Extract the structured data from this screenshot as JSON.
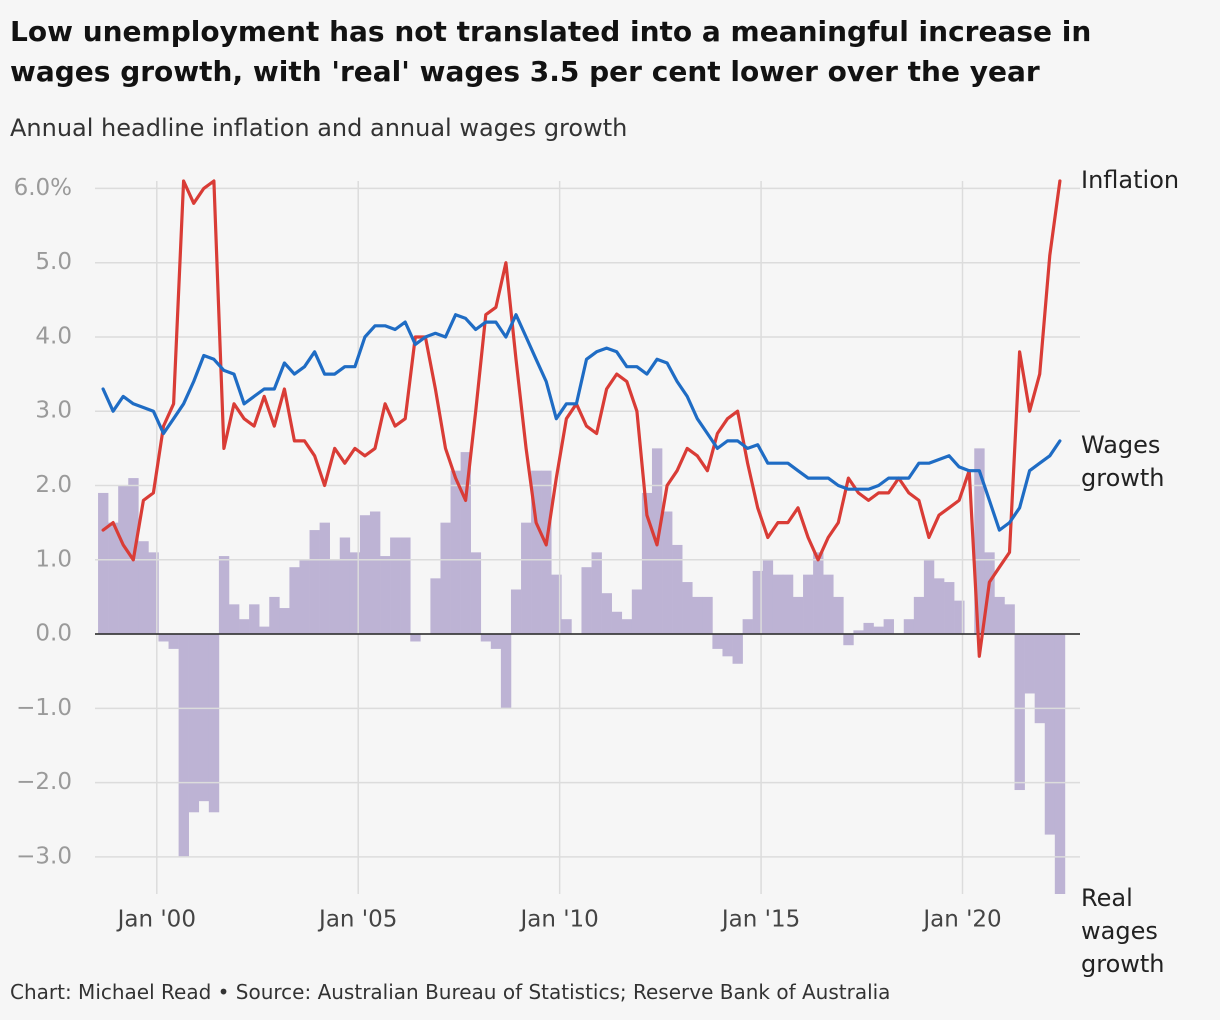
{
  "chart_data": {
    "type": "line-bar",
    "title": "Low unemployment has not translated into a meaningful increase in wages growth, with 'real' wages 3.5 per cent lower over the year",
    "subtitle": "Annual headline inflation and annual wages growth",
    "source": "Chart: Michael Read • Source: Australian Bureau of Statistics; Reserve Bank of Australia",
    "x": [
      "1998-09",
      "1998-12",
      "1999-03",
      "1999-06",
      "1999-09",
      "1999-12",
      "2000-03",
      "2000-06",
      "2000-09",
      "2000-12",
      "2001-03",
      "2001-06",
      "2001-09",
      "2001-12",
      "2002-03",
      "2002-06",
      "2002-09",
      "2002-12",
      "2003-03",
      "2003-06",
      "2003-09",
      "2003-12",
      "2004-03",
      "2004-06",
      "2004-09",
      "2004-12",
      "2005-03",
      "2005-06",
      "2005-09",
      "2005-12",
      "2006-03",
      "2006-06",
      "2006-09",
      "2006-12",
      "2007-03",
      "2007-06",
      "2007-09",
      "2007-12",
      "2008-03",
      "2008-06",
      "2008-09",
      "2008-12",
      "2009-03",
      "2009-06",
      "2009-09",
      "2009-12",
      "2010-03",
      "2010-06",
      "2010-09",
      "2010-12",
      "2011-03",
      "2011-06",
      "2011-09",
      "2011-12",
      "2012-03",
      "2012-06",
      "2012-09",
      "2012-12",
      "2013-03",
      "2013-06",
      "2013-09",
      "2013-12",
      "2014-03",
      "2014-06",
      "2014-09",
      "2014-12",
      "2015-03",
      "2015-06",
      "2015-09",
      "2015-12",
      "2016-03",
      "2016-06",
      "2016-09",
      "2016-12",
      "2017-03",
      "2017-06",
      "2017-09",
      "2017-12",
      "2018-03",
      "2018-06",
      "2018-09",
      "2018-12",
      "2019-03",
      "2019-06",
      "2019-09",
      "2019-12",
      "2020-03",
      "2020-06",
      "2020-09",
      "2020-12",
      "2021-03",
      "2021-06",
      "2021-09",
      "2021-12",
      "2022-03",
      "2022-06"
    ],
    "series": [
      {
        "name": "Inflation",
        "kind": "line",
        "color": "#d93c36",
        "values": [
          1.4,
          1.5,
          1.2,
          1.0,
          1.8,
          1.9,
          2.8,
          3.1,
          6.1,
          5.8,
          6.0,
          6.1,
          2.5,
          3.1,
          2.9,
          2.8,
          3.2,
          2.8,
          3.3,
          2.6,
          2.6,
          2.4,
          2.0,
          2.5,
          2.3,
          2.5,
          2.4,
          2.5,
          3.1,
          2.8,
          2.9,
          4.0,
          4.0,
          3.3,
          2.5,
          2.1,
          1.8,
          3.0,
          4.3,
          4.4,
          5.0,
          3.7,
          2.5,
          1.5,
          1.2,
          2.1,
          2.9,
          3.1,
          2.8,
          2.7,
          3.3,
          3.5,
          3.4,
          3.0,
          1.6,
          1.2,
          2.0,
          2.2,
          2.5,
          2.4,
          2.2,
          2.7,
          2.9,
          3.0,
          2.3,
          1.7,
          1.3,
          1.5,
          1.5,
          1.7,
          1.3,
          1.0,
          1.3,
          1.5,
          2.1,
          1.9,
          1.8,
          1.9,
          1.9,
          2.1,
          1.9,
          1.8,
          1.3,
          1.6,
          1.7,
          1.8,
          2.2,
          -0.3,
          0.7,
          0.9,
          1.1,
          3.8,
          3.0,
          3.5,
          5.1,
          6.1
        ]
      },
      {
        "name": "Wages growth",
        "kind": "line",
        "color": "#1f6cc4",
        "values": [
          3.3,
          3.0,
          3.2,
          3.1,
          3.05,
          3.0,
          2.7,
          2.9,
          3.1,
          3.4,
          3.75,
          3.7,
          3.55,
          3.5,
          3.1,
          3.2,
          3.3,
          3.3,
          3.65,
          3.5,
          3.6,
          3.8,
          3.5,
          3.5,
          3.6,
          3.6,
          4.0,
          4.15,
          4.15,
          4.1,
          4.2,
          3.9,
          4.0,
          4.05,
          4.0,
          4.3,
          4.25,
          4.1,
          4.2,
          4.2,
          4.0,
          4.3,
          4.0,
          3.7,
          3.4,
          2.9,
          3.1,
          3.1,
          3.7,
          3.8,
          3.85,
          3.8,
          3.6,
          3.6,
          3.5,
          3.7,
          3.65,
          3.4,
          3.2,
          2.9,
          2.7,
          2.5,
          2.6,
          2.6,
          2.5,
          2.55,
          2.3,
          2.3,
          2.3,
          2.2,
          2.1,
          2.1,
          2.1,
          2.0,
          1.95,
          1.95,
          1.95,
          2.0,
          2.1,
          2.1,
          2.1,
          2.3,
          2.3,
          2.35,
          2.4,
          2.25,
          2.2,
          2.2,
          1.8,
          1.4,
          1.5,
          1.7,
          2.2,
          2.3,
          2.4,
          2.6
        ]
      },
      {
        "name": "Real wages growth",
        "kind": "bar",
        "color": "#bdb3d4",
        "values": [
          1.9,
          1.5,
          2.0,
          2.1,
          1.25,
          1.1,
          -0.1,
          -0.2,
          -3.0,
          -2.4,
          -2.25,
          -2.4,
          1.05,
          0.4,
          0.2,
          0.4,
          0.1,
          0.5,
          0.35,
          0.9,
          1.0,
          1.4,
          1.5,
          1.0,
          1.3,
          1.1,
          1.6,
          1.65,
          1.05,
          1.3,
          1.3,
          -0.1,
          0.0,
          0.75,
          1.5,
          2.2,
          2.45,
          1.1,
          -0.1,
          -0.2,
          -1.0,
          0.6,
          1.5,
          2.2,
          2.2,
          0.8,
          0.2,
          0.0,
          0.9,
          1.1,
          0.55,
          0.3,
          0.2,
          0.6,
          1.9,
          2.5,
          1.65,
          1.2,
          0.7,
          0.5,
          0.5,
          -0.2,
          -0.3,
          -0.4,
          0.2,
          0.85,
          1.0,
          0.8,
          0.8,
          0.5,
          0.8,
          1.1,
          0.8,
          0.5,
          -0.15,
          0.05,
          0.15,
          0.1,
          0.2,
          0.0,
          0.2,
          0.5,
          1.0,
          0.75,
          0.7,
          0.45,
          0.0,
          2.5,
          1.1,
          0.5,
          0.4,
          -2.1,
          -0.8,
          -1.2,
          -2.7,
          -3.5
        ]
      }
    ],
    "xlim": [
      "1998-06",
      "2022-12"
    ],
    "xticks": [
      {
        "value": "2000-01",
        "label": "Jan '00"
      },
      {
        "value": "2005-01",
        "label": "Jan '05"
      },
      {
        "value": "2010-01",
        "label": "Jan '10"
      },
      {
        "value": "2015-01",
        "label": "Jan '15"
      },
      {
        "value": "2020-01",
        "label": "Jan '20"
      }
    ],
    "ylim": [
      -3.5,
      6.1
    ],
    "yticks": [
      {
        "value": 6,
        "label": "6.0%"
      },
      {
        "value": 5,
        "label": "5.0"
      },
      {
        "value": 4,
        "label": "4.0"
      },
      {
        "value": 3,
        "label": "3.0"
      },
      {
        "value": 2,
        "label": "2.0"
      },
      {
        "value": 1,
        "label": "1.0"
      },
      {
        "value": 0,
        "label": "0.0"
      },
      {
        "value": -1,
        "label": "−1.0"
      },
      {
        "value": -2,
        "label": "−2.0"
      },
      {
        "value": -3,
        "label": "−3.0"
      }
    ],
    "grid": true,
    "legend": "line-end"
  }
}
